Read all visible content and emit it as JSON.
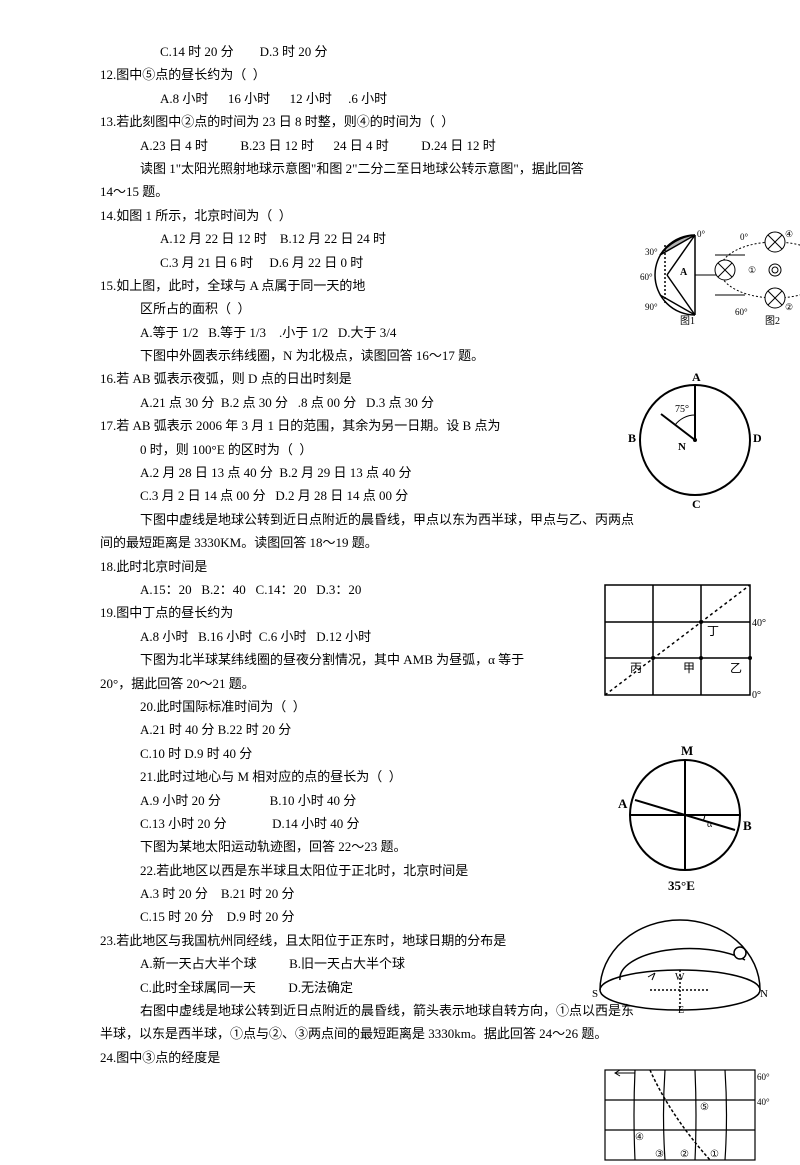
{
  "lines": [
    {
      "cls": "indent1",
      "t": "C.14 时 20 分        D.3 时 20 分"
    },
    {
      "cls": "",
      "t": "12.图中⑤点的昼长约为（  ）"
    },
    {
      "cls": "indent1",
      "t": "A.8 小时      16 小时      12 小时     .6 小时"
    },
    {
      "cls": "",
      "t": "13.若此刻图中②点的时间为 23 日 8 时整，则④的时间为（  ）"
    },
    {
      "cls": "indent2",
      "t": "A.23 日 4 时          B.23 日 12 时      24 日 4 时          D.24 日 12 时"
    },
    {
      "cls": "indent2",
      "t": "读图 1\"太阳光照射地球示意图\"和图 2\"二分二至日地球公转示意图\"，据此回答"
    },
    {
      "cls": "",
      "t": "14～15 题。"
    },
    {
      "cls": "",
      "t": "14.如图 1 所示，北京时间为（  ）"
    },
    {
      "cls": "indent1",
      "t": "A.12 月 22 日 12 时    B.12 月 22 日 24 时"
    },
    {
      "cls": "indent1",
      "t": "C.3 月 21 日 6 时     D.6 月 22 日 0 时"
    },
    {
      "cls": "",
      "t": "15.如上图，此时，全球与 A 点属于同一天的地"
    },
    {
      "cls": "indent2",
      "t": "区所占的面积（  ）"
    },
    {
      "cls": "indent2",
      "t": "A.等于 1/2   B.等于 1/3    .小于 1/2   D.大于 3/4"
    },
    {
      "cls": "indent2",
      "t": "下图中外圆表示纬线圈，N 为北极点，读图回答 16～17 题。"
    },
    {
      "cls": "",
      "t": "16.若 AB 弧表示夜弧，则 D 点的日出时刻是"
    },
    {
      "cls": "indent2",
      "t": "A.21 点 30 分  B.2 点 30 分   .8 点 00 分   D.3 点 30 分"
    },
    {
      "cls": "",
      "t": "17.若 AB 弧表示 2006 年 3 月 1 日的范围，其余为另一日期。设 B 点为"
    },
    {
      "cls": "indent2",
      "t": "0 时，则 100°E 的区时为（  ）"
    },
    {
      "cls": "indent2",
      "t": "A.2 月 28 日 13 点 40 分  B.2 月 29 日 13 点 40 分"
    },
    {
      "cls": "indent2",
      "t": "C.3 月 2 日 14 点 00 分   D.2 月 28 日 14 点 00 分"
    },
    {
      "cls": "indent2",
      "t": "下图中虚线是地球公转到近日点附近的晨昏线，甲点以东为西半球，甲点与乙、丙两点"
    },
    {
      "cls": "",
      "t": "间的最短距离是 3330KM。读图回答 18～19 题。"
    },
    {
      "cls": "",
      "t": "18.此时北京时间是"
    },
    {
      "cls": "indent2",
      "t": "A.15：20   B.2：40   C.14：20   D.3：20"
    },
    {
      "cls": "",
      "t": "19.图中丁点的昼长约为"
    },
    {
      "cls": "indent2",
      "t": "A.8 小时   B.16 小时  C.6 小时   D.12 小时"
    },
    {
      "cls": "indent2",
      "t": "下图为北半球某纬线圈的昼夜分割情况，其中 AMB 为昼弧，α 等于"
    },
    {
      "cls": "",
      "t": "20°，据此回答 20～21 题。"
    },
    {
      "cls": "indent2",
      "t": "20.此时国际标准时间为（  ）"
    },
    {
      "cls": "indent2",
      "t": "A.21 时 40 分 B.22 时 20 分"
    },
    {
      "cls": "indent2",
      "t": "C.10 时 D.9 时 40 分"
    },
    {
      "cls": "indent2",
      "t": "21.此时过地心与 M 相对应的点的昼长为（  ）"
    },
    {
      "cls": "indent2",
      "t": "A.9 小时 20 分               B.10 小时 40 分"
    },
    {
      "cls": "indent2",
      "t": "C.13 小时 20 分              D.14 小时 40 分"
    },
    {
      "cls": "indent2",
      "t": "下图为某地太阳运动轨迹图，回答 22～23 题。"
    },
    {
      "cls": "indent2",
      "t": "22.若此地区以西是东半球且太阳位于正北时，北京时间是"
    },
    {
      "cls": "indent2",
      "t": "A.3 时 20 分    B.21 时 20 分"
    },
    {
      "cls": "indent2",
      "t": "C.15 时 20 分    D.9 时 20 分"
    },
    {
      "cls": "",
      "t": "23.若此地区与我国杭州同经线，且太阳位于正东时，地球日期的分布是"
    },
    {
      "cls": "indent2",
      "t": "A.新一天占大半个球          B.旧一天占大半个球"
    },
    {
      "cls": "indent2",
      "t": "C.此时全球属同一天          D.无法确定"
    },
    {
      "cls": "indent2",
      "t": "右图中虚线是地球公转到近日点附近的晨昏线，箭头表示地球自转方向，①点以西是东"
    },
    {
      "cls": "",
      "t": "半球，以东是西半球，①点与②、③两点间的最短距离是 3330km。据此回答 24～26 题。"
    },
    {
      "cls": "",
      "t": "24.图中③点的经度是"
    }
  ],
  "labels": {
    "img1_0a": "0°",
    "img1_0b": "0°",
    "img1_30": "30°",
    "img1_60a": "60°",
    "img1_60b": "60°",
    "img1_90": "90°",
    "img1_A": "A",
    "img1_cap": "图1",
    "img2_cap": "图2",
    "c1_A": "A",
    "c1_B": "B",
    "c1_C": "C",
    "c1_D": "D",
    "c1_N": "N",
    "c1_75": "75°",
    "grid_40": "40°",
    "grid_0": "0°",
    "grid_T": "丁",
    "grid_bing": "丙",
    "grid_jia": "甲",
    "grid_yi": "乙",
    "cm_M": "M",
    "cm_A": "A",
    "cm_B": "B",
    "cm_a": "α",
    "cm_35": "35°E",
    "dome_W": "W",
    "dome_S": "S",
    "dome_N": "N",
    "dome_E": "E",
    "map_60": "60°",
    "map_40": "40°",
    "map_5": "⑤",
    "map_4": "④",
    "map_2": "②",
    "map_3": "③",
    "map_1": "①"
  },
  "sty": {
    "stroke": "#000000",
    "sw": "1.5",
    "font": "11",
    "font_sm": "9"
  }
}
